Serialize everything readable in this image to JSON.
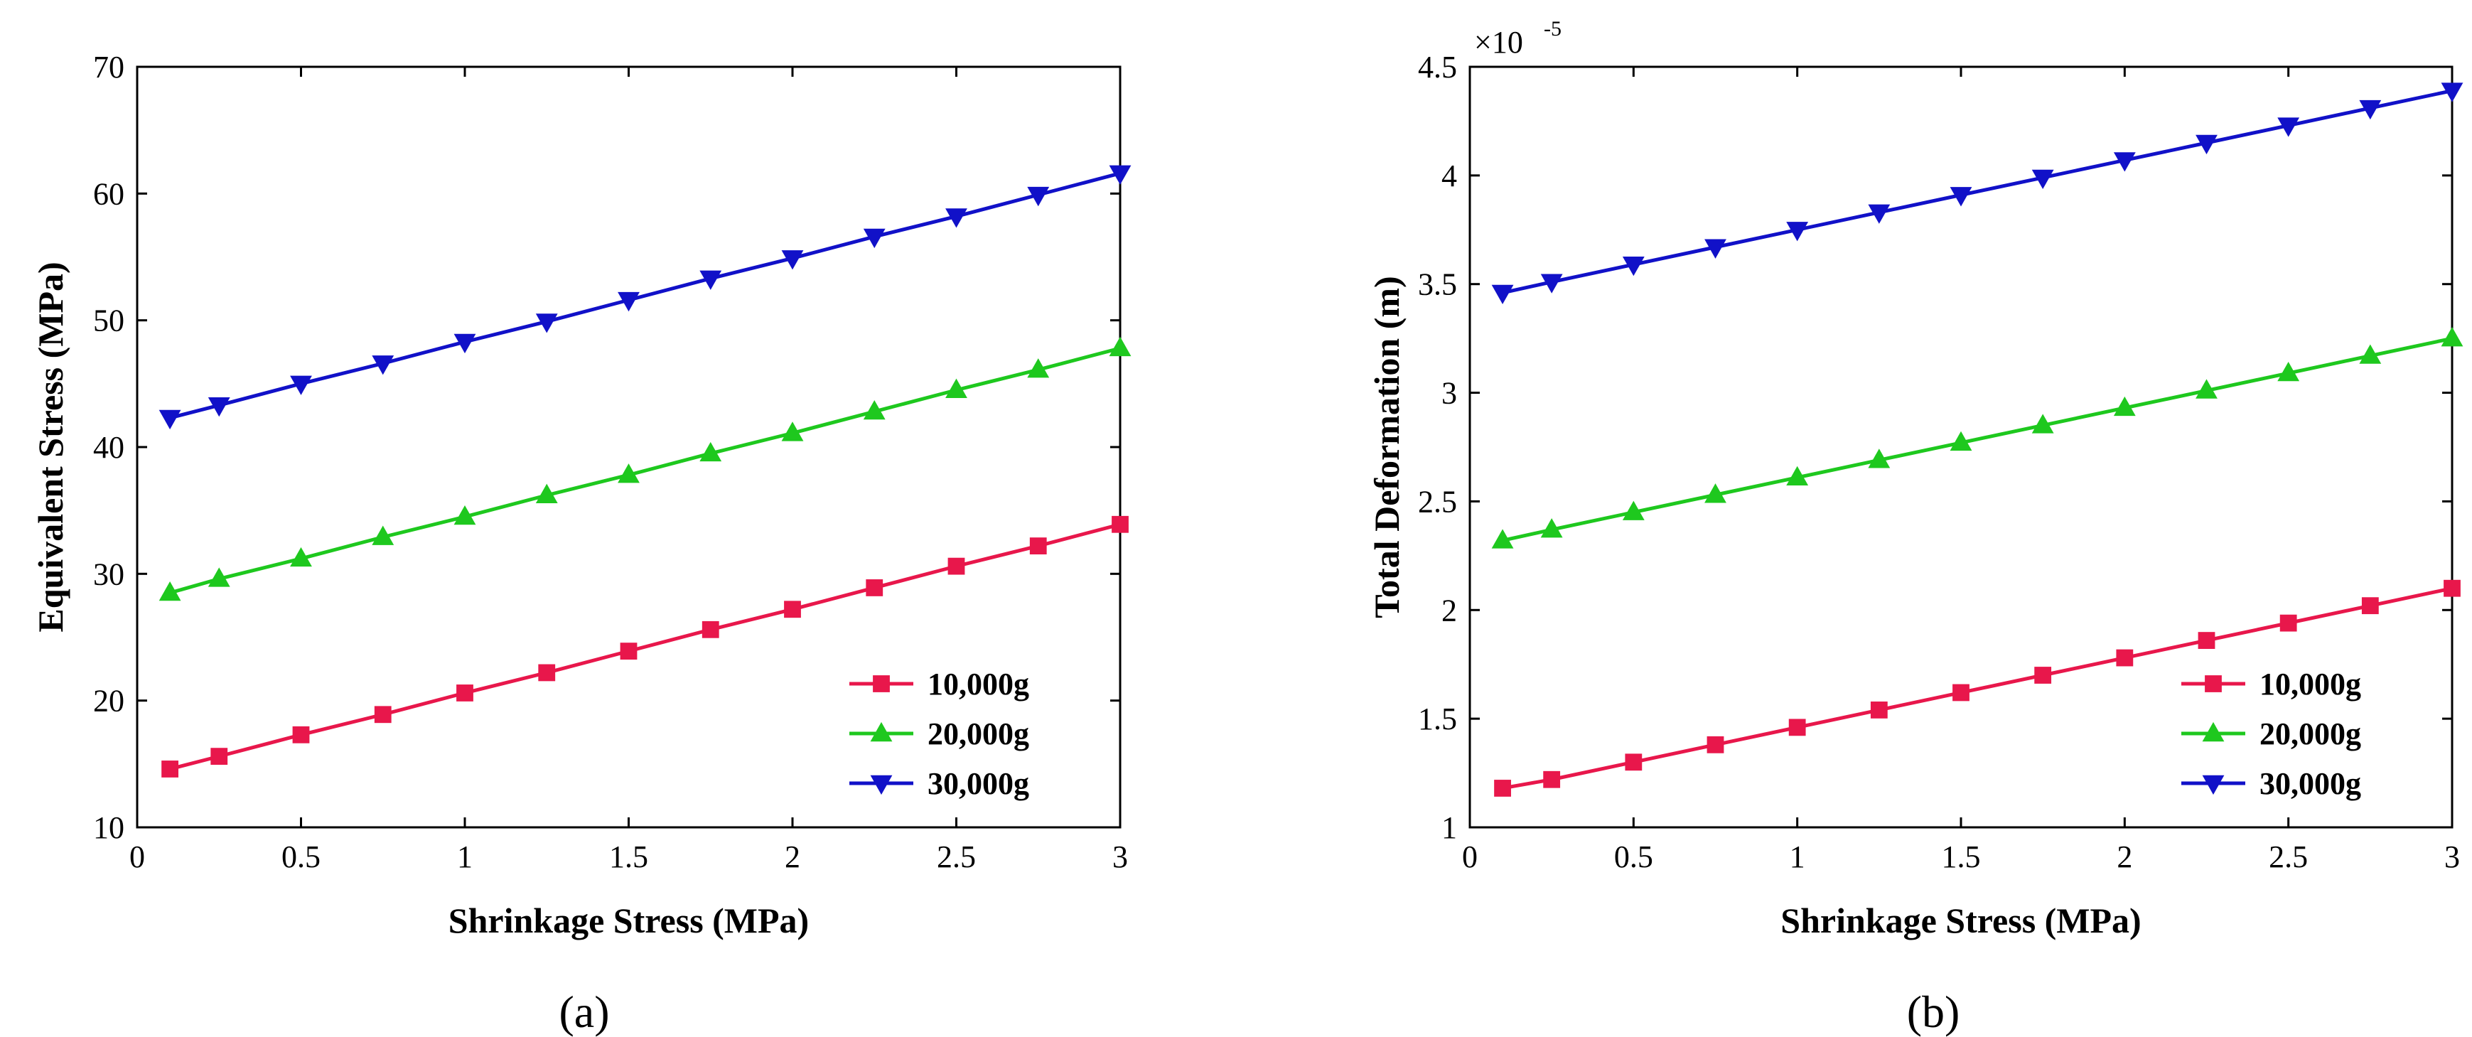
{
  "chart_data": [
    {
      "type": "line",
      "panel": "a",
      "caption": "(a)",
      "xlabel": "Shrinkage Stress (MPa)",
      "ylabel": "Equivalent Stress (MPa)",
      "xlim": [
        0,
        3
      ],
      "ylim": [
        10,
        70
      ],
      "xticks": [
        0,
        0.5,
        1,
        1.5,
        2,
        2.5,
        3
      ],
      "xtick_labels": [
        "0",
        "0.5",
        "1",
        "1.5",
        "2",
        "2.5",
        "3"
      ],
      "yticks": [
        10,
        20,
        30,
        40,
        50,
        60,
        70
      ],
      "ytick_labels": [
        "10",
        "20",
        "30",
        "40",
        "50",
        "60",
        "70"
      ],
      "exponent_label": "",
      "legend_position": "bottom-right",
      "x": [
        0.1,
        0.25,
        0.5,
        0.75,
        1,
        1.25,
        1.5,
        1.75,
        2,
        2.25,
        2.5,
        2.75,
        3
      ],
      "series": [
        {
          "name": "10,000g",
          "color": "#e8174b",
          "marker": "square",
          "values": [
            14.6,
            15.6,
            17.3,
            18.9,
            20.6,
            22.2,
            23.9,
            25.6,
            27.2,
            28.9,
            30.6,
            32.2,
            33.9
          ]
        },
        {
          "name": "20,000g",
          "color": "#1ec81e",
          "marker": "triangle-up",
          "values": [
            28.5,
            29.6,
            31.2,
            32.9,
            34.5,
            36.2,
            37.8,
            39.5,
            41.1,
            42.8,
            44.5,
            46.1,
            47.8
          ]
        },
        {
          "name": "30,000g",
          "color": "#1111c8",
          "marker": "triangle-down",
          "values": [
            42.3,
            43.3,
            45.0,
            46.6,
            48.3,
            49.9,
            51.6,
            53.3,
            54.9,
            56.6,
            58.2,
            59.9,
            61.6
          ]
        }
      ]
    },
    {
      "type": "line",
      "panel": "b",
      "caption": "(b)",
      "xlabel": "Shrinkage Stress (MPa)",
      "ylabel": "Total Deformation (m)",
      "xlim": [
        0,
        3
      ],
      "ylim": [
        1,
        4.5
      ],
      "xticks": [
        0,
        0.5,
        1,
        1.5,
        2,
        2.5,
        3
      ],
      "xtick_labels": [
        "0",
        "0.5",
        "1",
        "1.5",
        "2",
        "2.5",
        "3"
      ],
      "yticks": [
        1,
        1.5,
        2,
        2.5,
        3,
        3.5,
        4,
        4.5
      ],
      "ytick_labels": [
        "1",
        "1.5",
        "2",
        "2.5",
        "3",
        "3.5",
        "4",
        "4.5"
      ],
      "exponent_label": "×10",
      "exponent_power": "-5",
      "legend_position": "bottom-right",
      "x": [
        0.1,
        0.25,
        0.5,
        0.75,
        1,
        1.25,
        1.5,
        1.75,
        2,
        2.25,
        2.5,
        2.75,
        3
      ],
      "series": [
        {
          "name": "10,000g",
          "color": "#e8174b",
          "marker": "square",
          "values": [
            1.18,
            1.22,
            1.3,
            1.38,
            1.46,
            1.54,
            1.62,
            1.7,
            1.78,
            1.86,
            1.94,
            2.02,
            2.1
          ]
        },
        {
          "name": "20,000g",
          "color": "#1ec81e",
          "marker": "triangle-up",
          "values": [
            2.32,
            2.37,
            2.45,
            2.53,
            2.61,
            2.69,
            2.77,
            2.85,
            2.93,
            3.01,
            3.09,
            3.17,
            3.25
          ]
        },
        {
          "name": "30,000g",
          "color": "#1111c8",
          "marker": "triangle-down",
          "values": [
            3.46,
            3.51,
            3.59,
            3.67,
            3.75,
            3.83,
            3.91,
            3.99,
            4.07,
            4.15,
            4.23,
            4.31,
            4.39
          ]
        }
      ]
    }
  ]
}
